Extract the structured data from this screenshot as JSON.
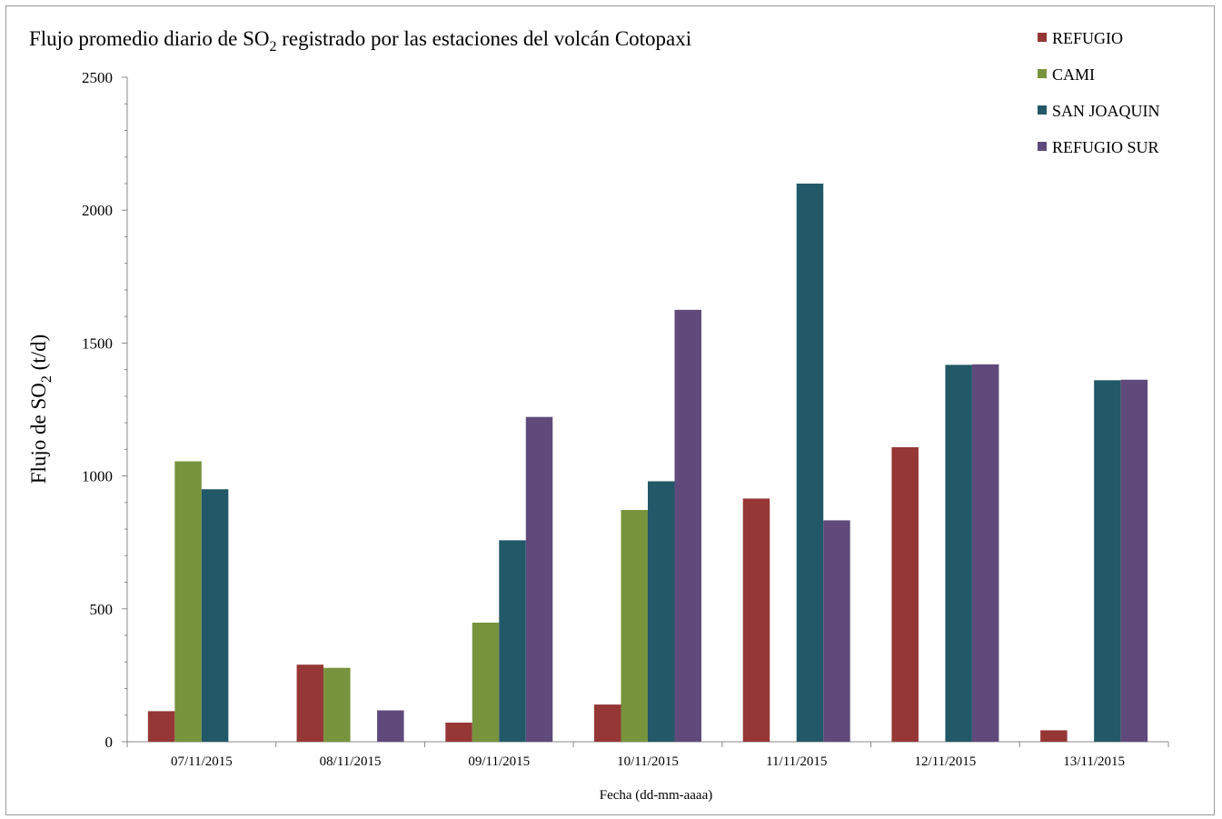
{
  "chart_data": {
    "type": "bar",
    "title_main": "Flujo promedio diario de SO",
    "title_sub": "2",
    "title_rest": " registrado por las estaciones del volcán Cotopaxi",
    "ylabel_main": "Flujo de SO",
    "ylabel_sub": "2",
    "ylabel_rest": " (t/d)",
    "xlabel": "Fecha (dd-mm-aaaa)",
    "ylim": [
      0,
      2500
    ],
    "yticks": [
      0,
      500,
      1000,
      1500,
      2000,
      2500
    ],
    "grid": false,
    "legend_position": "top-right",
    "categories": [
      "07/11/2015",
      "08/11/2015",
      "09/11/2015",
      "10/11/2015",
      "11/11/2015",
      "12/11/2015",
      "13/11/2015"
    ],
    "series": [
      {
        "name": "REFUGIO",
        "color": "#953735",
        "values": [
          115,
          290,
          72,
          140,
          915,
          1108,
          43
        ]
      },
      {
        "name": "CAMI",
        "color": "#77933c",
        "values": [
          1055,
          278,
          448,
          872,
          null,
          null,
          null
        ]
      },
      {
        "name": "SAN JOAQUIN",
        "color": "#215968",
        "values": [
          950,
          null,
          758,
          980,
          2100,
          1418,
          1360
        ]
      },
      {
        "name": "REFUGIO SUR",
        "color": "#604a7b",
        "values": [
          null,
          118,
          1222,
          1625,
          833,
          1420,
          1362
        ]
      }
    ]
  }
}
